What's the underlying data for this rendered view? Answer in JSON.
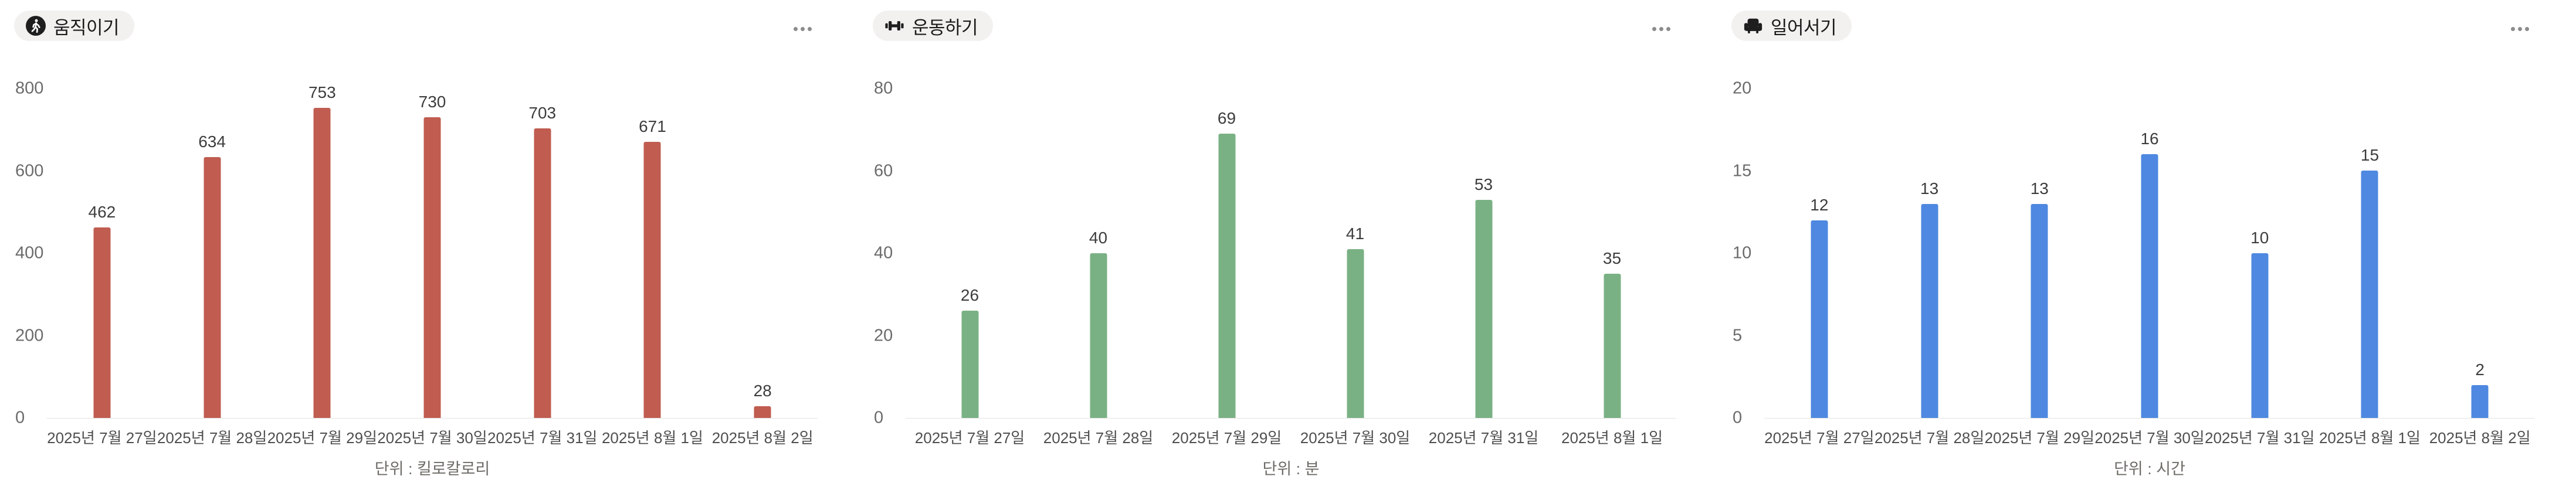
{
  "panels": [
    {
      "title": "움직이기",
      "icon": "person-walk-icon",
      "unit_label": "단위 : 킬로칼로리",
      "menu_icon": "ellipsis-menu-icon",
      "badge_bg": "#f2f1ef",
      "accent_color": "#c05c50"
    },
    {
      "title": "운동하기",
      "icon": "dumbbell-icon",
      "unit_label": "단위 : 분",
      "menu_icon": "ellipsis-menu-icon",
      "badge_bg": "#f2f1ef",
      "accent_color": "#7ab184"
    },
    {
      "title": "일어서기",
      "icon": "armchair-icon",
      "unit_label": "단위 : 시간",
      "menu_icon": "ellipsis-menu-icon",
      "badge_bg": "#f2f1ef",
      "accent_color": "#4e88e0"
    }
  ],
  "chart_data": [
    {
      "type": "bar",
      "title": "움직이기",
      "categories": [
        "2025년 7월 27일",
        "2025년 7월 28일",
        "2025년 7월 29일",
        "2025년 7월 30일",
        "2025년 7월 31일",
        "2025년 8월 1일",
        "2025년 8월 2일"
      ],
      "values": [
        462,
        634,
        753,
        730,
        703,
        671,
        28
      ],
      "unit": "킬로칼로리",
      "xlabel": "",
      "ylabel": "",
      "ylim": [
        0,
        800
      ],
      "yticks": [
        0,
        200,
        400,
        600,
        800
      ],
      "bar_color": "#c05c50",
      "grid": false,
      "legend": "none",
      "value_labels": true
    },
    {
      "type": "bar",
      "title": "운동하기",
      "categories": [
        "2025년 7월 27일",
        "2025년 7월 28일",
        "2025년 7월 29일",
        "2025년 7월 30일",
        "2025년 7월 31일",
        "2025년 8월 1일"
      ],
      "values": [
        26,
        40,
        69,
        41,
        53,
        35
      ],
      "unit": "분",
      "xlabel": "",
      "ylabel": "",
      "ylim": [
        0,
        80
      ],
      "yticks": [
        0,
        20,
        40,
        60,
        80
      ],
      "bar_color": "#7ab184",
      "grid": false,
      "legend": "none",
      "value_labels": true
    },
    {
      "type": "bar",
      "title": "일어서기",
      "categories": [
        "2025년 7월 27일",
        "2025년 7월 28일",
        "2025년 7월 29일",
        "2025년 7월 30일",
        "2025년 7월 31일",
        "2025년 8월 1일",
        "2025년 8월 2일"
      ],
      "values": [
        12,
        13,
        13,
        16,
        10,
        15,
        2
      ],
      "unit": "시간",
      "xlabel": "",
      "ylabel": "",
      "ylim": [
        0,
        20
      ],
      "yticks": [
        0,
        5,
        10,
        15,
        20
      ],
      "bar_color": "#4e88e0",
      "grid": false,
      "legend": "none",
      "value_labels": true
    }
  ]
}
